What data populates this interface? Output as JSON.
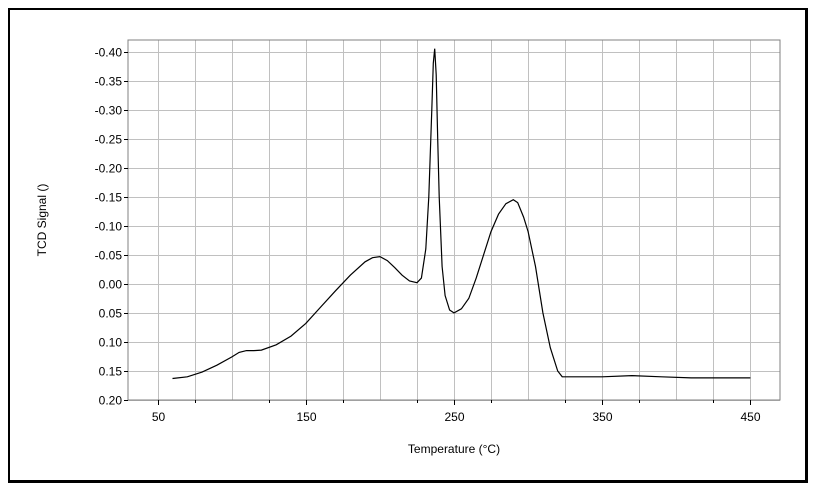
{
  "chart_data": {
    "type": "line",
    "xlabel": "Temperature (°C)",
    "ylabel": "TCD Signal ()",
    "xlim": [
      30,
      470
    ],
    "ylim": [
      0.2,
      -0.42
    ],
    "y_axis_inverted": true,
    "x_ticks": [
      "50",
      "150",
      "250",
      "350",
      "450"
    ],
    "y_ticks": [
      "-0.40",
      "-0.35",
      "-0.30",
      "-0.25",
      "-0.20",
      "-0.15",
      "-0.10",
      "-0.05",
      "0.00",
      "0.05",
      "0.10",
      "0.15",
      "0.20"
    ],
    "grid": true,
    "line_color": "#000000",
    "grid_color": "#c0c0c0",
    "series": [
      {
        "x": [
          60,
          70,
          80,
          90,
          100,
          105,
          110,
          115,
          120,
          130,
          140,
          150,
          160,
          170,
          180,
          190,
          195,
          200,
          205,
          210,
          215,
          220,
          225,
          228,
          231,
          233,
          235,
          236,
          237,
          238,
          239,
          240,
          242,
          244,
          247,
          250,
          255,
          260,
          265,
          270,
          275,
          280,
          285,
          290,
          293,
          297,
          300,
          305,
          310,
          315,
          320,
          323,
          330,
          350,
          370,
          390,
          410,
          430,
          450
        ],
        "y": [
          0.163,
          0.16,
          0.152,
          0.14,
          0.126,
          0.118,
          0.115,
          0.115,
          0.114,
          0.105,
          0.09,
          0.068,
          0.04,
          0.012,
          -0.015,
          -0.038,
          -0.045,
          -0.047,
          -0.04,
          -0.028,
          -0.015,
          -0.005,
          -0.002,
          -0.01,
          -0.06,
          -0.15,
          -0.3,
          -0.38,
          -0.405,
          -0.36,
          -0.25,
          -0.15,
          -0.03,
          0.02,
          0.045,
          0.05,
          0.043,
          0.025,
          -0.01,
          -0.05,
          -0.09,
          -0.12,
          -0.138,
          -0.145,
          -0.14,
          -0.115,
          -0.09,
          -0.03,
          0.05,
          0.11,
          0.15,
          0.16,
          0.16,
          0.16,
          0.158,
          0.16,
          0.162,
          0.162,
          0.162
        ]
      }
    ]
  }
}
